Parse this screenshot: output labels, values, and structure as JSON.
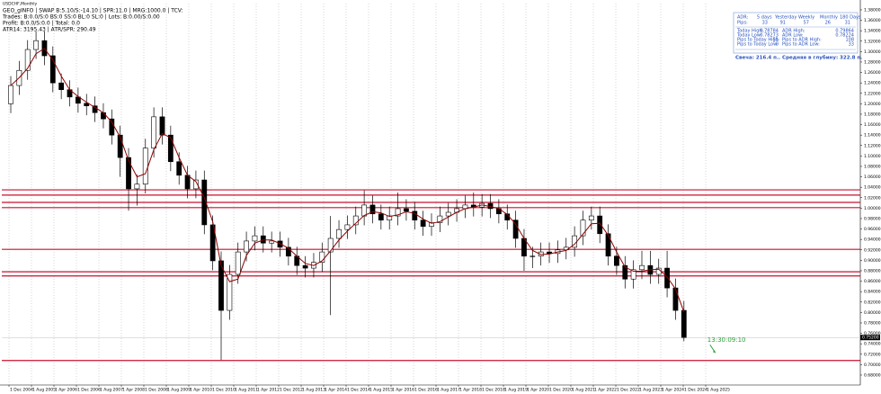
{
  "chart_data": {
    "type": "candlestick",
    "title": "USDCHF,Monthly",
    "info_lines": [
      "GEO_gINFO | SWAP B:5.10/S:-14.10 | SPR:11.0 | MRG:1000.0 | TCV:",
      "Trades: B:0.0/S:0 BS:0 SS:0 BL:0 SL:0 | Lots: B:0.00/S:0.00",
      "Profit: B:0.0/S:0.0 | Total: 0.0",
      "ATR14: 3195.43 | ATR/SPR: 290.49"
    ],
    "open": [
      1.2,
      1.235,
      1.264,
      1.304,
      1.321,
      1.292,
      1.24,
      1.227,
      1.213,
      1.201,
      1.196,
      1.183,
      1.171,
      1.14,
      1.097,
      1.037,
      1.046,
      1.115,
      1.175,
      1.14,
      1.089,
      1.063,
      1.037,
      1.054,
      0.968,
      0.899,
      0.804,
      0.873,
      0.916,
      0.937,
      0.947,
      0.933,
      0.937,
      0.925,
      0.908,
      0.89,
      0.885,
      0.896,
      0.916,
      0.942,
      0.959,
      0.968,
      0.985,
      1.006,
      0.989,
      0.977,
      0.985,
      0.999,
      0.994,
      0.977,
      0.965,
      0.972,
      0.985,
      0.992,
      0.999,
      1.006,
      1.002,
      1.009,
      0.999,
      0.989,
      0.977,
      0.942,
      0.908,
      0.908,
      0.916,
      0.913,
      0.92,
      0.925,
      0.947,
      0.977,
      0.985,
      0.951,
      0.908,
      0.89,
      0.864,
      0.882,
      0.89,
      0.873,
      0.885,
      0.847,
      0.804
    ],
    "high": [
      1.253,
      1.282,
      1.322,
      1.339,
      1.339,
      1.31,
      1.258,
      1.245,
      1.231,
      1.219,
      1.214,
      1.201,
      1.189,
      1.158,
      1.115,
      1.064,
      1.133,
      1.193,
      1.193,
      1.158,
      1.107,
      1.081,
      1.072,
      1.072,
      0.986,
      0.917,
      0.891,
      0.934,
      0.955,
      0.965,
      0.965,
      0.955,
      0.955,
      0.943,
      0.926,
      0.908,
      0.914,
      0.934,
      0.985,
      0.977,
      0.986,
      1.003,
      1.034,
      1.024,
      1.007,
      1.003,
      1.03,
      1.017,
      1.012,
      0.995,
      0.99,
      1.003,
      1.01,
      1.017,
      1.024,
      1.03,
      1.027,
      1.027,
      1.017,
      1.007,
      0.995,
      0.96,
      0.926,
      0.934,
      0.934,
      0.938,
      0.943,
      0.965,
      0.995,
      1.003,
      1.003,
      0.969,
      0.926,
      0.908,
      0.9,
      0.918,
      0.918,
      0.903,
      0.918,
      0.865,
      0.822
    ],
    "low": [
      1.182,
      1.217,
      1.246,
      1.286,
      1.274,
      1.222,
      1.209,
      1.195,
      1.183,
      1.178,
      1.165,
      1.153,
      1.122,
      1.06,
      0.995,
      1.005,
      1.028,
      1.097,
      1.122,
      1.071,
      1.045,
      1.019,
      1.019,
      0.95,
      0.881,
      0.709,
      0.786,
      0.855,
      0.898,
      0.919,
      0.915,
      0.915,
      0.907,
      0.89,
      0.872,
      0.867,
      0.867,
      0.878,
      0.795,
      0.924,
      0.941,
      0.95,
      0.967,
      0.971,
      0.959,
      0.959,
      0.967,
      0.976,
      0.959,
      0.947,
      0.947,
      0.954,
      0.967,
      0.974,
      0.981,
      0.984,
      0.984,
      0.981,
      0.971,
      0.959,
      0.924,
      0.88,
      0.885,
      0.89,
      0.895,
      0.895,
      0.902,
      0.907,
      0.929,
      0.959,
      0.933,
      0.89,
      0.872,
      0.846,
      0.846,
      0.864,
      0.855,
      0.855,
      0.829,
      0.786,
      0.745
    ],
    "close": [
      1.235,
      1.264,
      1.304,
      1.321,
      1.292,
      1.24,
      1.227,
      1.213,
      1.201,
      1.196,
      1.183,
      1.171,
      1.14,
      1.097,
      1.037,
      1.046,
      1.115,
      1.175,
      1.14,
      1.089,
      1.063,
      1.037,
      1.054,
      0.968,
      0.899,
      0.804,
      0.873,
      0.916,
      0.937,
      0.947,
      0.933,
      0.937,
      0.925,
      0.908,
      0.89,
      0.885,
      0.896,
      0.916,
      0.942,
      0.959,
      0.968,
      0.985,
      1.006,
      0.989,
      0.977,
      0.985,
      0.999,
      0.994,
      0.977,
      0.965,
      0.972,
      0.985,
      0.992,
      0.999,
      1.006,
      1.002,
      1.009,
      0.999,
      0.989,
      0.977,
      0.942,
      0.908,
      0.908,
      0.916,
      0.913,
      0.92,
      0.925,
      0.947,
      0.977,
      0.985,
      0.951,
      0.908,
      0.89,
      0.864,
      0.882,
      0.89,
      0.873,
      0.885,
      0.847,
      0.804,
      0.752
    ],
    "ma": {
      "color": "#8b0000",
      "values": [
        1.235,
        1.25,
        1.268,
        1.296,
        1.306,
        1.284,
        1.253,
        1.227,
        1.214,
        1.203,
        1.193,
        1.183,
        1.165,
        1.136,
        1.091,
        1.06,
        1.066,
        1.112,
        1.143,
        1.135,
        1.097,
        1.063,
        1.051,
        1.02,
        0.974,
        0.89,
        0.859,
        0.864,
        0.909,
        0.933,
        0.939,
        0.939,
        0.932,
        0.923,
        0.908,
        0.894,
        0.89,
        0.899,
        0.918,
        0.939,
        0.956,
        0.971,
        0.986,
        0.993,
        0.991,
        0.984,
        0.987,
        0.993,
        0.99,
        0.979,
        0.971,
        0.974,
        0.983,
        0.992,
        0.999,
        1.002,
        1.006,
        1.003,
        0.999,
        0.988,
        0.969,
        0.942,
        0.919,
        0.911,
        0.912,
        0.916,
        0.919,
        0.931,
        0.95,
        0.97,
        0.971,
        0.948,
        0.916,
        0.887,
        0.879,
        0.879,
        0.882,
        0.883,
        0.868,
        0.845,
        0.801
      ]
    },
    "levels": [
      1.035,
      1.025,
      1.011,
      1.001,
      0.921,
      0.878,
      0.87,
      0.708
    ],
    "level_color": "#c8102e",
    "last_price": {
      "value": 0.752,
      "label": "0.75200"
    },
    "annotation": "13:30:09:10",
    "annotation_color": "#2e9e3a",
    "ylim": [
      0.661,
      1.392
    ],
    "yticks": [
      {
        "value": 0.68,
        "label": "0.68000"
      },
      {
        "value": 0.7,
        "label": "0.70000"
      },
      {
        "value": 0.72,
        "label": "0.72000"
      },
      {
        "value": 0.74,
        "label": "0.74000"
      },
      {
        "value": 0.76,
        "label": "0.76000"
      },
      {
        "value": 0.78,
        "label": "0.78000"
      },
      {
        "value": 0.8,
        "label": "0.80000"
      },
      {
        "value": 0.82,
        "label": "0.82000"
      },
      {
        "value": 0.84,
        "label": "0.84000"
      },
      {
        "value": 0.86,
        "label": "0.86000"
      },
      {
        "value": 0.88,
        "label": "0.88000"
      },
      {
        "value": 0.9,
        "label": "0.90000"
      },
      {
        "value": 0.92,
        "label": "0.92000"
      },
      {
        "value": 0.94,
        "label": "0.94000"
      },
      {
        "value": 0.96,
        "label": "0.96000"
      },
      {
        "value": 0.98,
        "label": "0.98000"
      },
      {
        "value": 1.0,
        "label": "1.00000"
      },
      {
        "value": 1.02,
        "label": "1.02000"
      },
      {
        "value": 1.04,
        "label": "1.04000"
      },
      {
        "value": 1.06,
        "label": "1.06000"
      },
      {
        "value": 1.08,
        "label": "1.08000"
      },
      {
        "value": 1.1,
        "label": "1.10000"
      },
      {
        "value": 1.12,
        "label": "1.12000"
      },
      {
        "value": 1.14,
        "label": "1.14000"
      },
      {
        "value": 1.16,
        "label": "1.16000"
      },
      {
        "value": 1.18,
        "label": "1.18000"
      },
      {
        "value": 1.2,
        "label": "1.20000"
      },
      {
        "value": 1.22,
        "label": "1.22000"
      },
      {
        "value": 1.24,
        "label": "1.24000"
      },
      {
        "value": 1.26,
        "label": "1.26000"
      },
      {
        "value": 1.28,
        "label": "1.28000"
      },
      {
        "value": 1.3,
        "label": "1.30000"
      },
      {
        "value": 1.32,
        "label": "1.32000"
      },
      {
        "value": 1.34,
        "label": "1.34000"
      },
      {
        "value": 1.36,
        "label": "1.36000"
      },
      {
        "value": 1.38,
        "label": "1.38000"
      }
    ],
    "x_labels": [
      "1 Dec 2004",
      "1 Aug 2005",
      "1 Apr 2006",
      "1 Dec 2006",
      "1 Aug 2007",
      "1 Apr 2008",
      "1 Dec 2008",
      "1 Aug 2009",
      "1 Apr 2010",
      "1 Dec 2010",
      "1 Aug 2011",
      "1 Apr 2012",
      "1 Dec 2012",
      "1 Aug 2013",
      "1 Apr 2014",
      "1 Dec 2014",
      "1 Aug 2015",
      "1 Apr 2016",
      "1 Dec 2016",
      "1 Aug 2017",
      "1 Apr 2018",
      "1 Dec 2018",
      "1 Aug 2019",
      "1 Apr 2020",
      "1 Dec 2020",
      "1 Aug 2021",
      "1 Apr 2022",
      "1 Dec 2022",
      "1 Aug 2023",
      "1 Apr 2024",
      "1 Dec 2024",
      "1 Aug 2025"
    ],
    "grid": true,
    "adr_panel": {
      "header": [
        "ADR:",
        "5 days",
        "Yesterday",
        "Weekly",
        "Monthly",
        "180 Days"
      ],
      "pips": [
        "Pips:",
        "33",
        "91",
        "57",
        "26",
        "31"
      ],
      "rows": [
        [
          "Today High:",
          "0.78784",
          "ADR High:",
          "0.79864"
        ],
        [
          "Today Low:",
          "0.78273",
          "ADR Low:",
          "0.78224"
        ],
        [
          "Pips to Today High:",
          "51",
          "Pips to ADR High:",
          "108"
        ],
        [
          "Pips to Today Low:",
          "0",
          "Pips to ADR Low:",
          "33"
        ]
      ],
      "footer": "Свеча: 216.4 п.. Средняя в глубину: 322.8 п."
    }
  }
}
